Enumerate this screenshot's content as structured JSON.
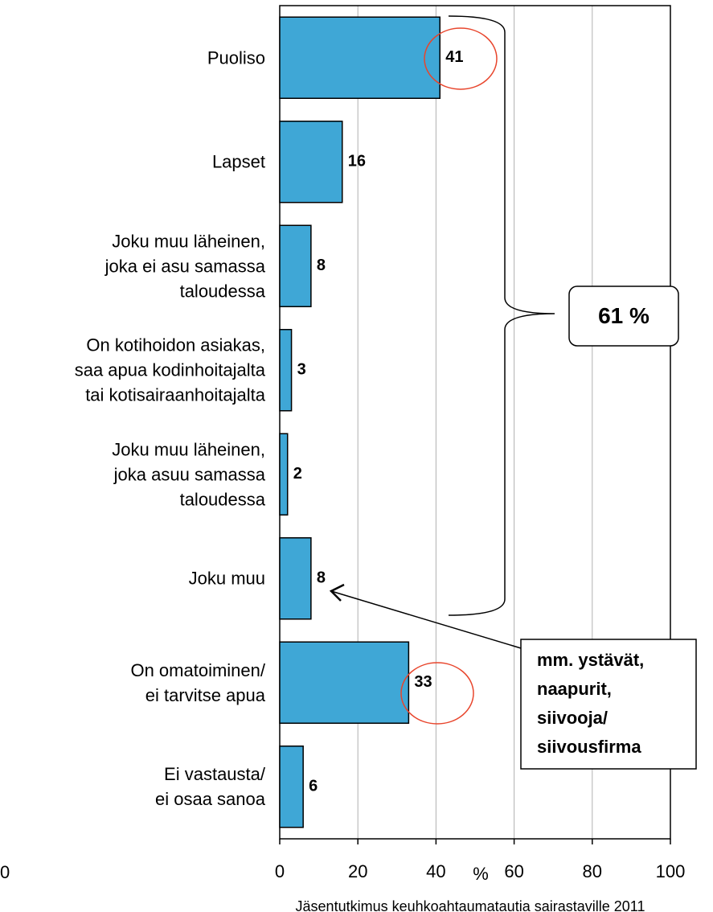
{
  "chart_data": {
    "type": "barh",
    "categories": [
      "Puoliso",
      "Lapset",
      "Joku muu läheinen,\njoka ei asu samassa\ntaloudessa",
      "On kotihoidon asiakas,\nsaa apua kodinhoitajalta\ntai kotisairaanhoitajalta",
      "Joku muu läheinen,\njoka asuu samassa\ntaloudessa",
      "Joku muu",
      "On omatoiminen/\nei tarvitse apua",
      "Ei vastausta/\nei osaa sanoa"
    ],
    "values": [
      41,
      16,
      8,
      3,
      2,
      8,
      33,
      6
    ],
    "color": "#3fa7d6",
    "xlim": [
      0,
      100
    ],
    "xticks": [
      0,
      20,
      40,
      60,
      80,
      100
    ],
    "grid": true,
    "xlabel": "%",
    "annotations": [
      "61 %",
      "mm. ystävät,\nnaapurit,\nsiivooja/\nsiivousfirma",
      "0"
    ],
    "source": "Jäsentutkimus keuhkoahtaumatautia sairastaville 2011"
  }
}
